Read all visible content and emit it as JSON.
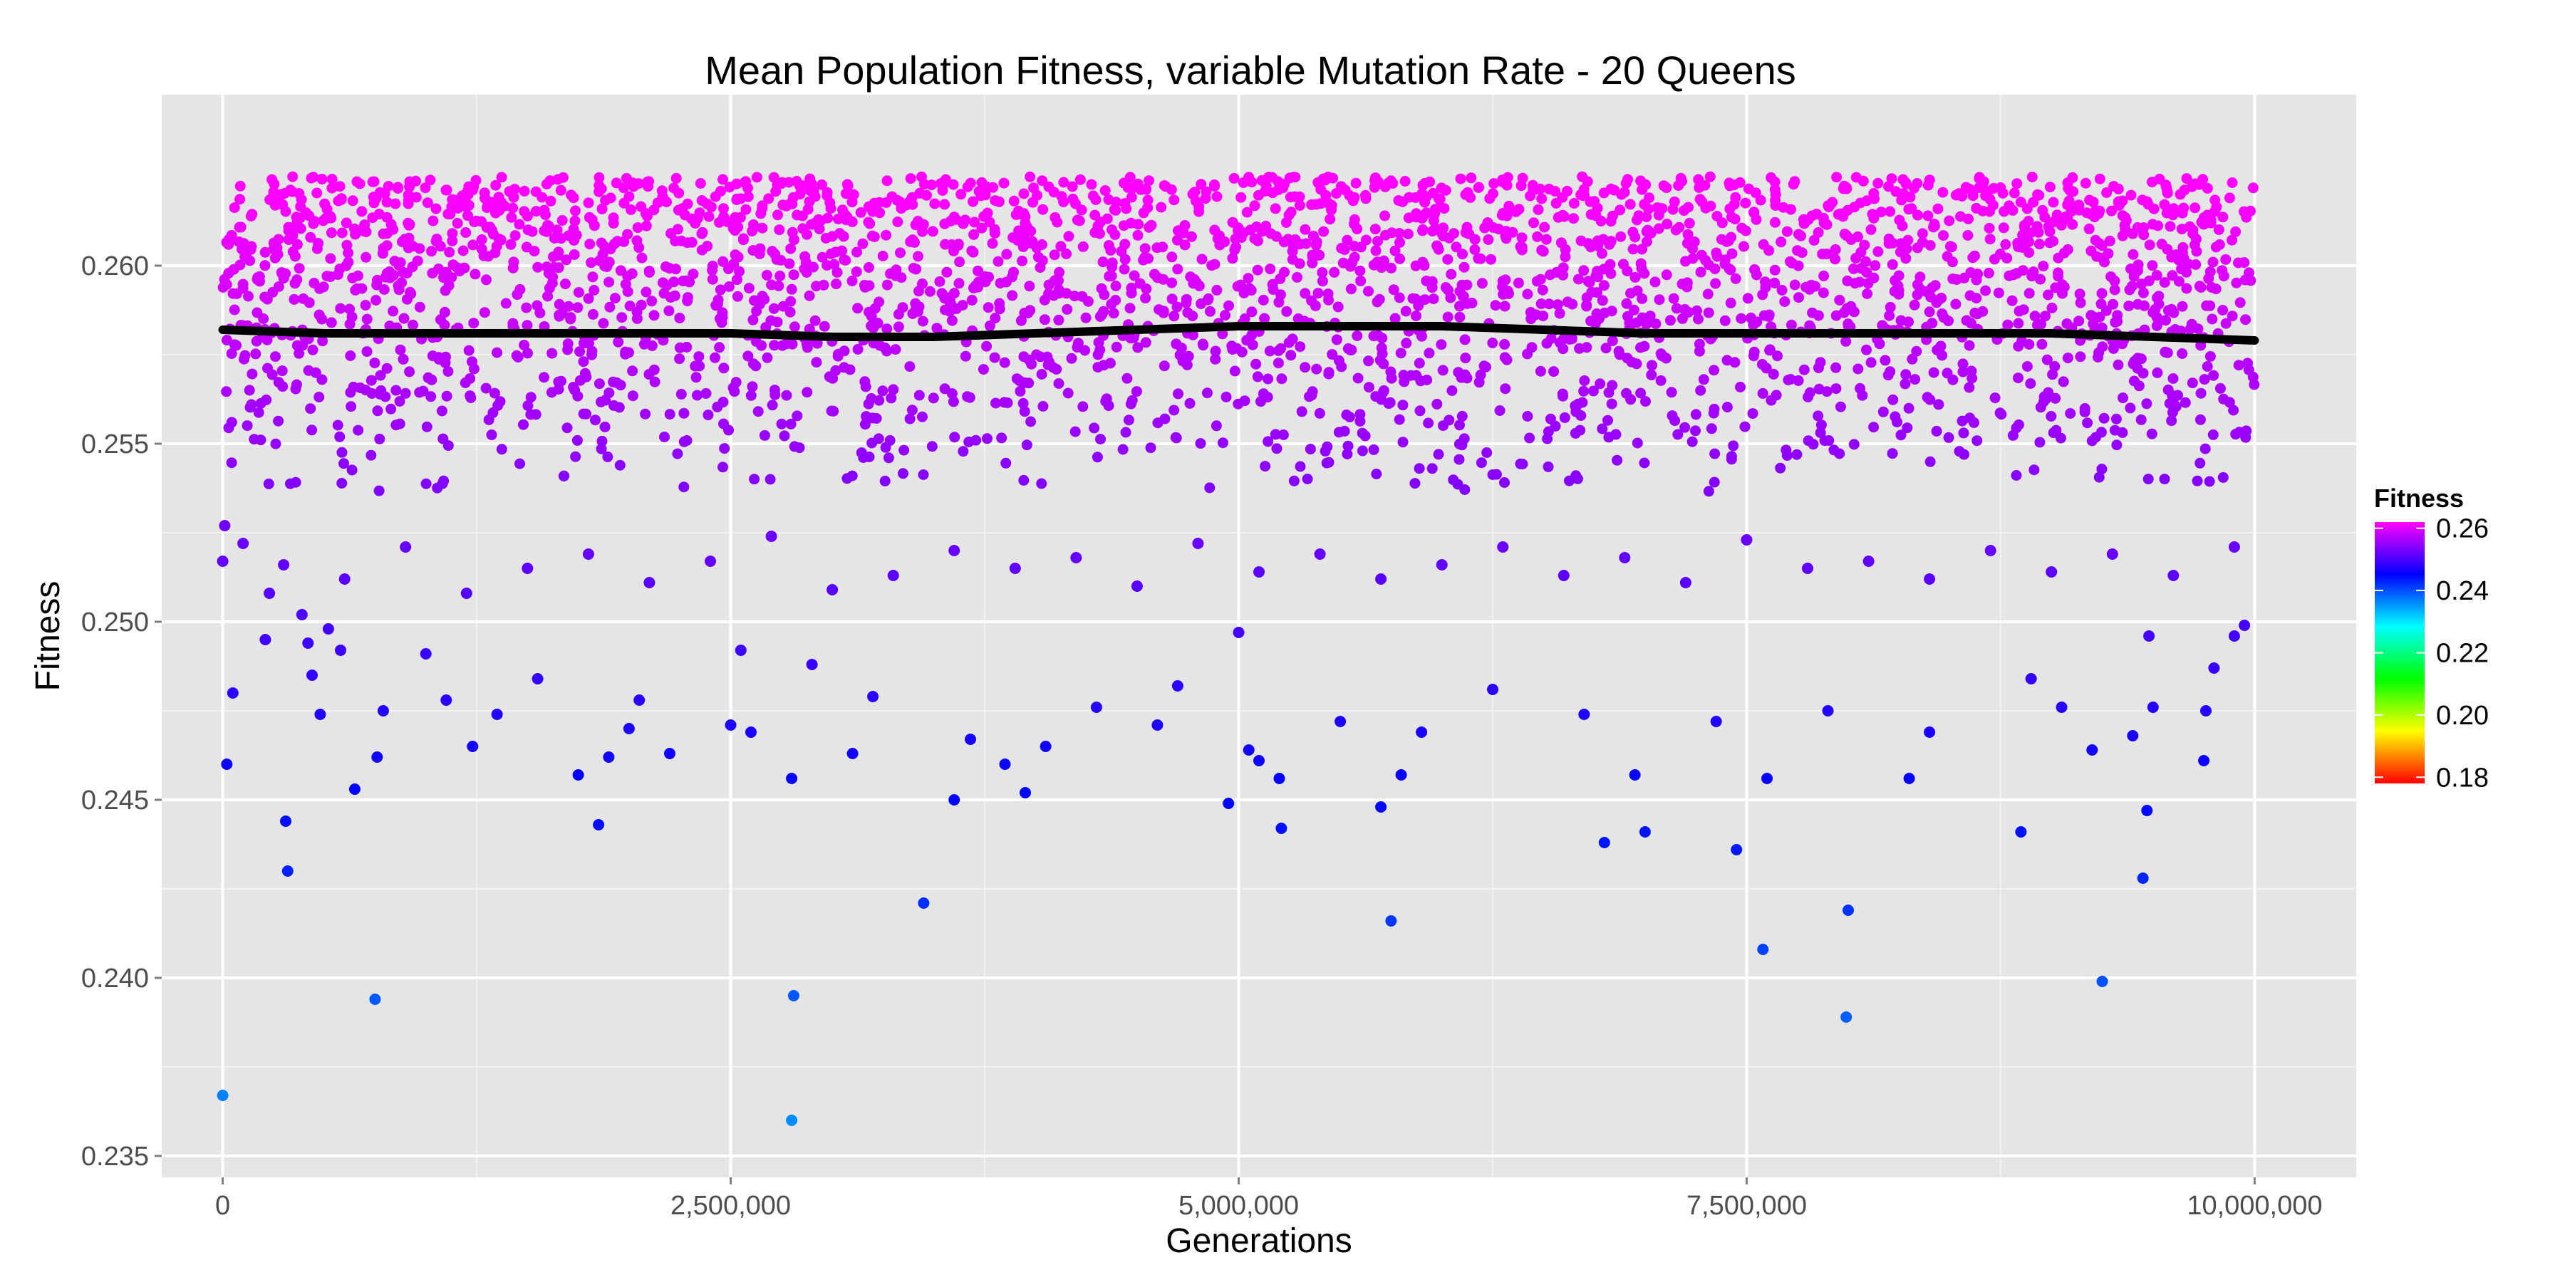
{
  "chart_data": {
    "type": "scatter",
    "title": "Mean Population Fitness, variable Mutation Rate - 20 Queens",
    "xlabel": "Generations",
    "ylabel": "Fitness",
    "xlim": [
      -300000,
      10500000
    ],
    "ylim": [
      0.2344,
      0.2648
    ],
    "x_ticks": [
      0,
      2500000,
      5000000,
      7500000,
      10000000
    ],
    "x_tick_labels": [
      "0",
      "2,500,000",
      "5,000,000",
      "7,500,000",
      "10,000,000"
    ],
    "y_ticks": [
      0.235,
      0.24,
      0.245,
      0.25,
      0.255,
      0.26
    ],
    "y_tick_labels": [
      "0.235",
      "0.240",
      "0.245",
      "0.250",
      "0.255",
      "0.260"
    ],
    "grid": true,
    "background": "#e5e5e5",
    "legend": {
      "title": "Fitness",
      "placement": "right",
      "labels": [
        "0.26",
        "0.24",
        "0.22",
        "0.20",
        "0.18"
      ],
      "values": [
        0.26,
        0.24,
        0.22,
        0.2,
        0.18
      ],
      "range": [
        0.178,
        0.262
      ],
      "colors": [
        "#ff0000",
        "#ffff00",
        "#00ff00",
        "#00ffff",
        "#0000ff",
        "#ff00ff"
      ]
    },
    "smooth_line": {
      "color": "#000000",
      "x": [
        0,
        500000,
        1000000,
        1500000,
        2000000,
        2500000,
        3000000,
        3500000,
        4000000,
        4500000,
        5000000,
        5500000,
        6000000,
        6500000,
        7000000,
        7500000,
        8000000,
        8500000,
        9000000,
        9500000,
        10000000
      ],
      "y": [
        0.2582,
        0.2581,
        0.2581,
        0.2581,
        0.2581,
        0.2581,
        0.258,
        0.258,
        0.2581,
        0.2582,
        0.2583,
        0.2583,
        0.2583,
        0.2582,
        0.2581,
        0.2581,
        0.2581,
        0.2581,
        0.2581,
        0.258,
        0.2579
      ],
      "labeled_points": [],
      "label": ""
    },
    "dense_band": {
      "x_range": [
        0,
        10000000
      ],
      "y_range": [
        0.2535,
        0.2625
      ],
      "approx_count": 3000
    },
    "series": [
      {
        "x": [
          0,
          20000,
          50000,
          210000,
          230000,
          310000,
          320000,
          390000,
          420000,
          440000,
          480000,
          520000,
          580000,
          650000,
          750000,
          760000,
          790000,
          1000000,
          1100000,
          1230000,
          1350000,
          1550000,
          1750000,
          1850000,
          1900000,
          2000000,
          2050000,
          2200000,
          2500000,
          2550000,
          2600000,
          2800000,
          2810000,
          2800000,
          2900000,
          3100000,
          3200000,
          3450000,
          3600000,
          3680000,
          3850000,
          3950000,
          4050000,
          4300000,
          4600000,
          4700000,
          4950000,
          5000000,
          5050000,
          5100000,
          5200000,
          5210000,
          5500000,
          5700000,
          5750000,
          5800000,
          5900000,
          6250000,
          6700000,
          6800000,
          6950000,
          7000000,
          7350000,
          7450000,
          7580000,
          7600000,
          7900000,
          7990000,
          8000000,
          8300000,
          8400000,
          8850000,
          8900000,
          9050000,
          9200000,
          9250000,
          9400000,
          9450000,
          9470000,
          9480000,
          9500000,
          9750000,
          9760000,
          9800000,
          9900000,
          9950000,
          0,
          10000,
          100000,
          300000,
          600000,
          900000,
          1200000,
          1500000,
          1800000,
          2100000,
          2400000,
          2700000,
          3000000,
          3300000,
          3600000,
          3900000,
          4200000,
          4500000,
          4800000,
          5100000,
          5400000,
          5700000,
          6000000,
          6300000,
          6600000,
          6900000,
          7200000,
          7500000,
          7800000,
          8100000,
          8400000,
          8700000,
          9000000,
          9300000,
          9600000,
          9900000
        ],
        "y": [
          0.2367,
          0.246,
          0.248,
          0.2495,
          0.2508,
          0.2444,
          0.243,
          0.2502,
          0.2494,
          0.2485,
          0.2474,
          0.2498,
          0.2492,
          0.2453,
          0.2394,
          0.2462,
          0.2475,
          0.2491,
          0.2478,
          0.2465,
          0.2474,
          0.2484,
          0.2457,
          0.2443,
          0.2462,
          0.247,
          0.2478,
          0.2463,
          0.2471,
          0.2492,
          0.2469,
          0.236,
          0.2395,
          0.2456,
          0.2488,
          0.2463,
          0.2479,
          0.2421,
          0.245,
          0.2467,
          0.246,
          0.2452,
          0.2465,
          0.2476,
          0.2471,
          0.2482,
          0.2449,
          0.2497,
          0.2464,
          0.2461,
          0.2456,
          0.2442,
          0.2472,
          0.2448,
          0.2416,
          0.2457,
          0.2469,
          0.2481,
          0.2474,
          0.2438,
          0.2457,
          0.2441,
          0.2472,
          0.2436,
          0.2408,
          0.2456,
          0.2475,
          0.2389,
          0.2419,
          0.2456,
          0.2469,
          0.2441,
          0.2484,
          0.2476,
          0.2464,
          0.2399,
          0.2468,
          0.2428,
          0.2447,
          0.2496,
          0.2476,
          0.2461,
          0.2475,
          0.2487,
          0.2496,
          0.2499,
          0.2517,
          0.2527,
          0.2522,
          0.2516,
          0.2512,
          0.2521,
          0.2508,
          0.2515,
          0.2519,
          0.2511,
          0.2517,
          0.2524,
          0.2509,
          0.2513,
          0.252,
          0.2515,
          0.2518,
          0.251,
          0.2522,
          0.2514,
          0.2519,
          0.2512,
          0.2516,
          0.2521,
          0.2513,
          0.2518,
          0.2511,
          0.2523,
          0.2515,
          0.2517,
          0.2512,
          0.252,
          0.2514,
          0.2519,
          0.2513,
          0.2521
        ]
      }
    ]
  }
}
